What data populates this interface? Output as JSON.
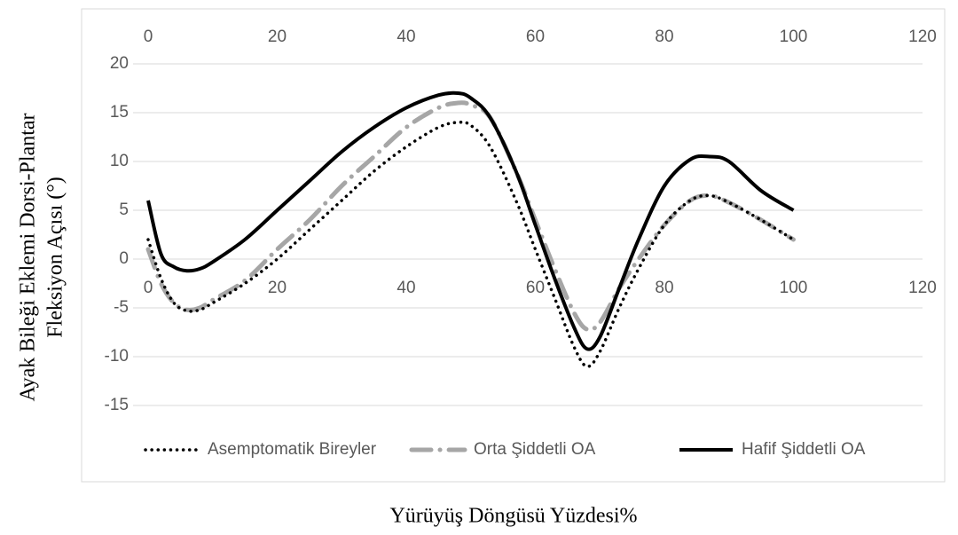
{
  "chart_data": {
    "type": "line",
    "xlabel": "Yürüyüş Döngüsü Yüzdesi%",
    "ylabel": [
      "Ayak Bileği Eklemi Dorsi-Plantar",
      "Fleksiyon Açısı (°)"
    ],
    "x": [
      0,
      2,
      4,
      6,
      8,
      10,
      15,
      20,
      25,
      30,
      35,
      40,
      45,
      48,
      50,
      53,
      57,
      60,
      63,
      66,
      68,
      70,
      73,
      76,
      80,
      84,
      87,
      90,
      95,
      100
    ],
    "series": [
      {
        "name": "Asemptomatik Bireyler",
        "color": "#000000",
        "style": "dotted",
        "values": [
          2,
          -2,
          -4.5,
          -5.3,
          -5.2,
          -4.5,
          -2.5,
          0,
          3,
          6,
          9,
          11.5,
          13.5,
          14,
          13.7,
          11.5,
          6,
          1,
          -4,
          -9,
          -11,
          -9.5,
          -5,
          -1,
          3.5,
          6,
          6.5,
          5.8,
          4,
          2
        ]
      },
      {
        "name": "Orta Şiddetli OA",
        "color": "#a6a6a6",
        "style": "dash-dot",
        "values": [
          1,
          -2.5,
          -4.5,
          -5.2,
          -5,
          -4.2,
          -2.2,
          1,
          4,
          7.5,
          10.5,
          13.5,
          15.5,
          16,
          15.8,
          14.5,
          9,
          4,
          -1,
          -5.5,
          -7.2,
          -6.5,
          -3,
          0,
          3.5,
          6,
          6.5,
          5.8,
          4,
          2
        ]
      },
      {
        "name": "Hafif Şiddetli OA",
        "color": "#000000",
        "style": "solid",
        "values": [
          6,
          0.5,
          -0.8,
          -1.2,
          -1,
          -0.3,
          2,
          5,
          8,
          11,
          13.5,
          15.5,
          16.8,
          17,
          16.5,
          14.5,
          9,
          3.5,
          -2,
          -7,
          -9.2,
          -8,
          -3,
          2,
          7.5,
          10.2,
          10.5,
          10,
          7,
          5
        ]
      }
    ],
    "xlim": [
      0,
      120
    ],
    "xticks": [
      0,
      20,
      40,
      60,
      80,
      100,
      120
    ],
    "ylim": [
      -15,
      20
    ],
    "yticks": [
      -15,
      -10,
      -5,
      0,
      5,
      10,
      15,
      20
    ],
    "grid": true,
    "legend": "bottom"
  }
}
